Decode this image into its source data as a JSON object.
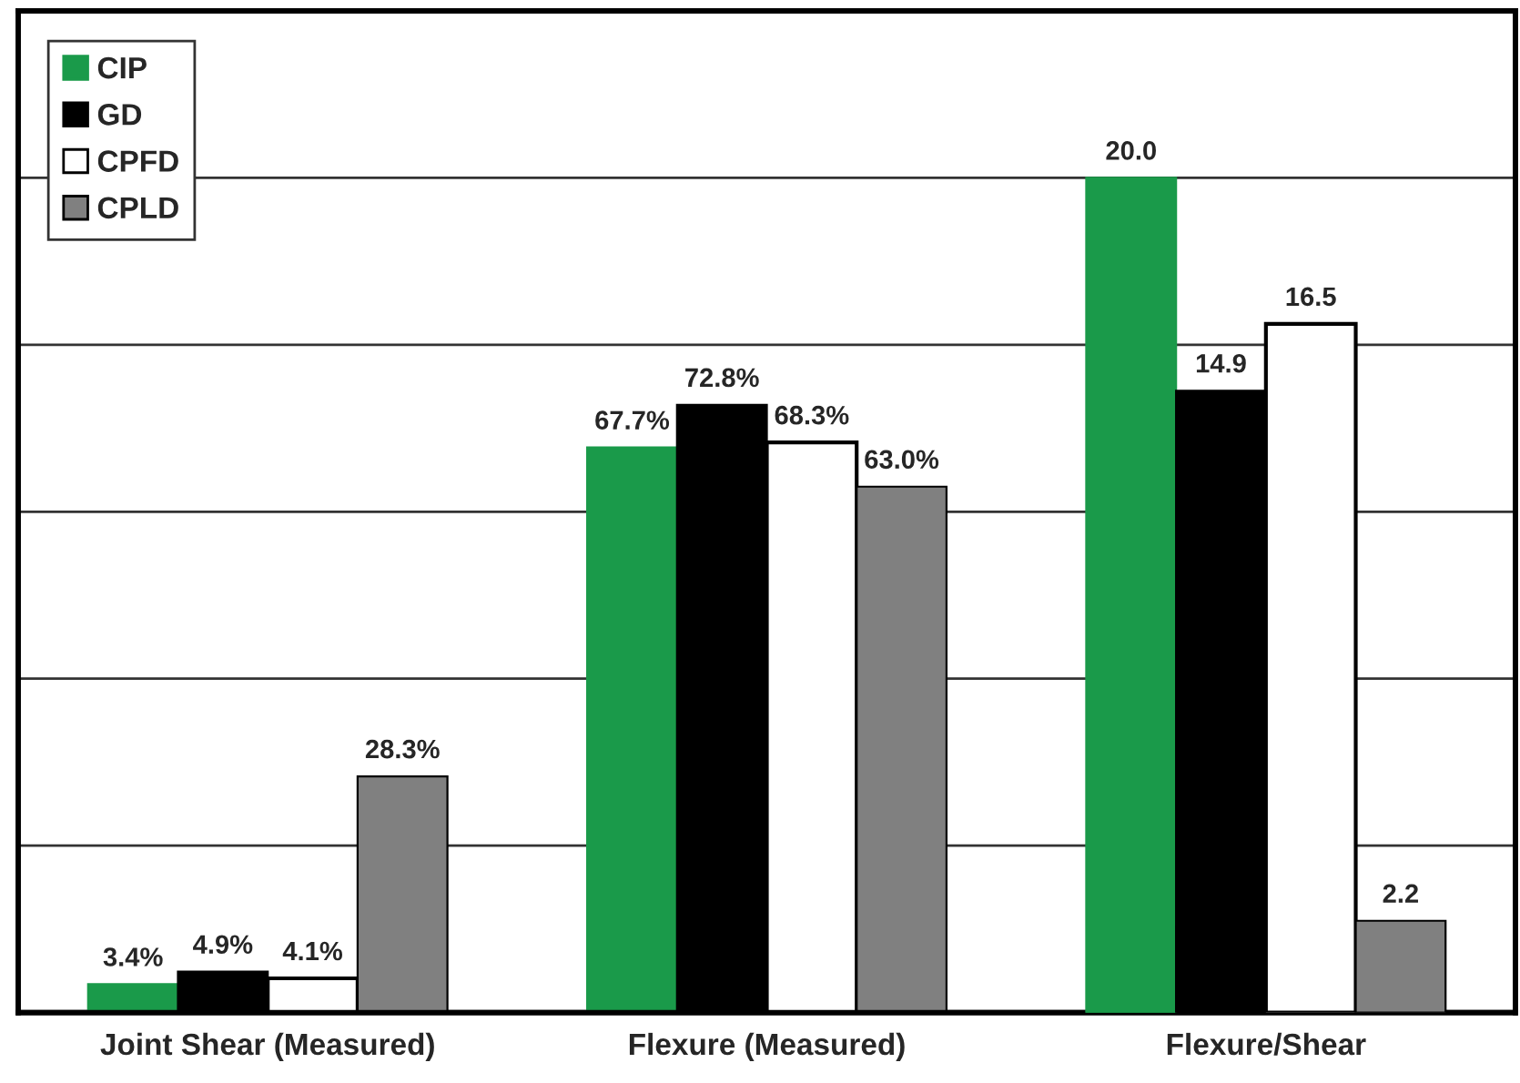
{
  "chart_data": {
    "type": "bar",
    "categories": [
      "Joint Shear (Measured)",
      "Flexure (Measured)",
      "Flexure/Shear"
    ],
    "series": [
      {
        "name": "CIP",
        "color": "#1a9a4a",
        "values": [
          3.4,
          67.7,
          null
        ],
        "value_labels": [
          "3.4%",
          "67.7%",
          null
        ]
      },
      {
        "name": "GD",
        "color": "#000000",
        "values": [
          4.9,
          72.8,
          null
        ],
        "value_labels": [
          "4.9%",
          "72.8%",
          null
        ]
      },
      {
        "name": "CPFD",
        "color": "#ffffff",
        "values": [
          4.1,
          68.3,
          null
        ],
        "value_labels": [
          "4.1%",
          "68.3%",
          null
        ]
      },
      {
        "name": "CPLD",
        "color": "#808080",
        "values": [
          28.3,
          63.0,
          null
        ],
        "value_labels": [
          "28.3%",
          "63.0%",
          null
        ]
      },
      {
        "color": "#1a9a4a",
        "axis": "y2",
        "values": [
          null,
          null,
          20.0
        ],
        "value_labels": [
          null,
          null,
          "20.0"
        ]
      },
      {
        "color": "#000000",
        "axis": "y2",
        "values": [
          null,
          null,
          14.9
        ],
        "value_labels": [
          null,
          null,
          "14.9"
        ]
      },
      {
        "color": "#ffffff",
        "axis": "y2",
        "values": [
          null,
          null,
          16.5
        ],
        "value_labels": [
          null,
          null,
          "16.5"
        ]
      },
      {
        "color": "#808080",
        "axis": "y2",
        "values": [
          null,
          null,
          2.2
        ],
        "value_labels": [
          null,
          null,
          "2.2"
        ]
      }
    ],
    "ylim": [
      0,
      120
    ],
    "y2lim": [
      0,
      24
    ],
    "tick_labels": "x",
    "grid": "y",
    "legend": "top left"
  }
}
